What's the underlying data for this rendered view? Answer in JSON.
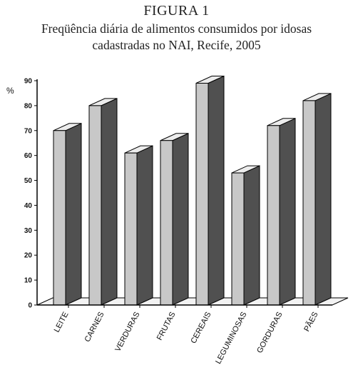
{
  "header": {
    "figure_label": "FIGURA 1",
    "title_line1": "Freqüência diária de alimentos consumidos por idosas",
    "title_line2": "cadastradas no NAI, Recife, 2005"
  },
  "chart_data": {
    "type": "bar",
    "style": "3d",
    "categories": [
      "LEITE",
      "CARNES",
      "VERDURAS",
      "FRUTAS",
      "CEREAIS",
      "LEGUMINOSAS",
      "GORDURAS",
      "PÃES"
    ],
    "values": [
      70,
      80,
      61,
      66,
      89,
      53,
      72,
      82
    ],
    "ylabel": "%",
    "xlabel": "",
    "ylim": [
      0,
      90
    ],
    "yticks": [
      0,
      10,
      20,
      30,
      40,
      50,
      60,
      70,
      80,
      90
    ],
    "grid": false,
    "legend": "none",
    "colors": {
      "bar_front": "#c8c8c8",
      "bar_side": "#505050",
      "bar_top": "#ececec",
      "floor": "#f2f2f2"
    }
  }
}
